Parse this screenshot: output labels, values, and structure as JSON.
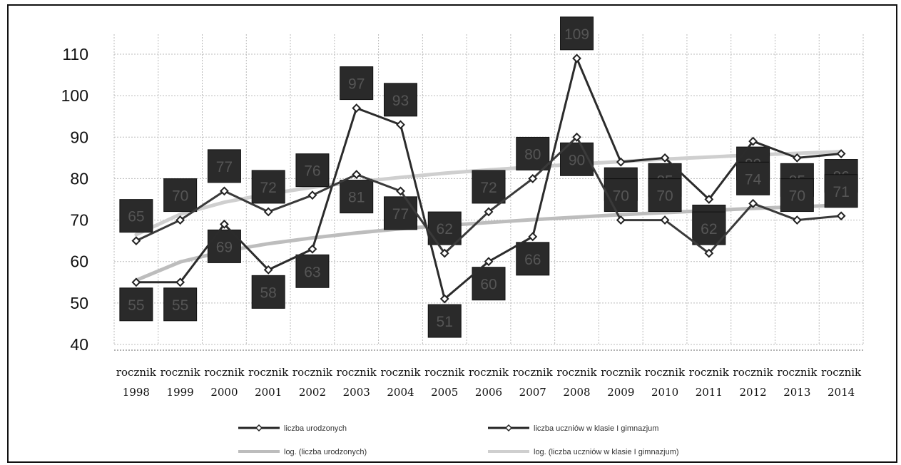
{
  "chart_data": {
    "type": "line",
    "title": "",
    "xlabel": "",
    "ylabel": "",
    "ylim": [
      40,
      110
    ],
    "yticks": [
      40,
      50,
      60,
      70,
      80,
      90,
      100,
      110
    ],
    "grid": true,
    "legend_position": "bottom",
    "categories": [
      {
        "line1": "rocznik",
        "line2": "1998"
      },
      {
        "line1": "rocznik",
        "line2": "1999"
      },
      {
        "line1": "rocznik",
        "line2": "2000"
      },
      {
        "line1": "rocznik",
        "line2": "2001"
      },
      {
        "line1": "rocznik",
        "line2": "2002"
      },
      {
        "line1": "rocznik",
        "line2": "2003"
      },
      {
        "line1": "rocznik",
        "line2": "2004"
      },
      {
        "line1": "rocznik",
        "line2": "2005"
      },
      {
        "line1": "rocznik",
        "line2": "2006"
      },
      {
        "line1": "rocznik",
        "line2": "2007"
      },
      {
        "line1": "rocznik",
        "line2": "2008"
      },
      {
        "line1": "rocznik",
        "line2": "2009"
      },
      {
        "line1": "rocznik",
        "line2": "2010"
      },
      {
        "line1": "rocznik",
        "line2": "2011"
      },
      {
        "line1": "rocznik",
        "line2": "2012"
      },
      {
        "line1": "rocznik",
        "line2": "2013"
      },
      {
        "line1": "rocznik",
        "line2": "2014"
      }
    ],
    "series": [
      {
        "name": "liczba urodzonych",
        "kind": "data",
        "color": "#2b2b2b",
        "values": [
          55,
          55,
          69,
          58,
          63,
          97,
          93,
          51,
          60,
          66,
          109,
          84,
          85,
          75,
          89,
          85,
          86
        ],
        "labels": [
          "55",
          "55",
          "69",
          "58",
          "63",
          "97",
          "93",
          "51",
          "60",
          "66",
          "109",
          "84",
          "85",
          "75",
          "89",
          "85",
          "86"
        ]
      },
      {
        "name": "liczba uczniów w klasie I gimnazjum",
        "kind": "data",
        "color": "#3a3a3a",
        "values": [
          65,
          70,
          77,
          72,
          76,
          81,
          77,
          62,
          72,
          80,
          90,
          70,
          70,
          62,
          74,
          70,
          71
        ],
        "labels": [
          "65",
          "70",
          "77",
          "72",
          "76",
          "81",
          "77",
          "62",
          "72",
          "80",
          "90",
          "70",
          "70",
          "62",
          "74",
          "70",
          "71"
        ]
      },
      {
        "name": "log. (liczba urodzonych)",
        "kind": "trend",
        "color": "#bdbdbd",
        "values": [
          55.5,
          59.9,
          62.5,
          64.3,
          65.7,
          66.9,
          67.9,
          68.7,
          69.4,
          70.1,
          70.7,
          71.3,
          71.8,
          72.3,
          72.8,
          73.2,
          73.6
        ]
      },
      {
        "name": "log. (liczba uczniów w klasie I gimnazjum)",
        "kind": "trend",
        "color": "#cfcfcf",
        "values": [
          66.5,
          71.4,
          74.3,
          76.3,
          77.9,
          79.2,
          80.3,
          81.3,
          82.1,
          82.8,
          83.5,
          84.1,
          84.7,
          85.2,
          85.7,
          86.1,
          86.5
        ]
      }
    ]
  }
}
